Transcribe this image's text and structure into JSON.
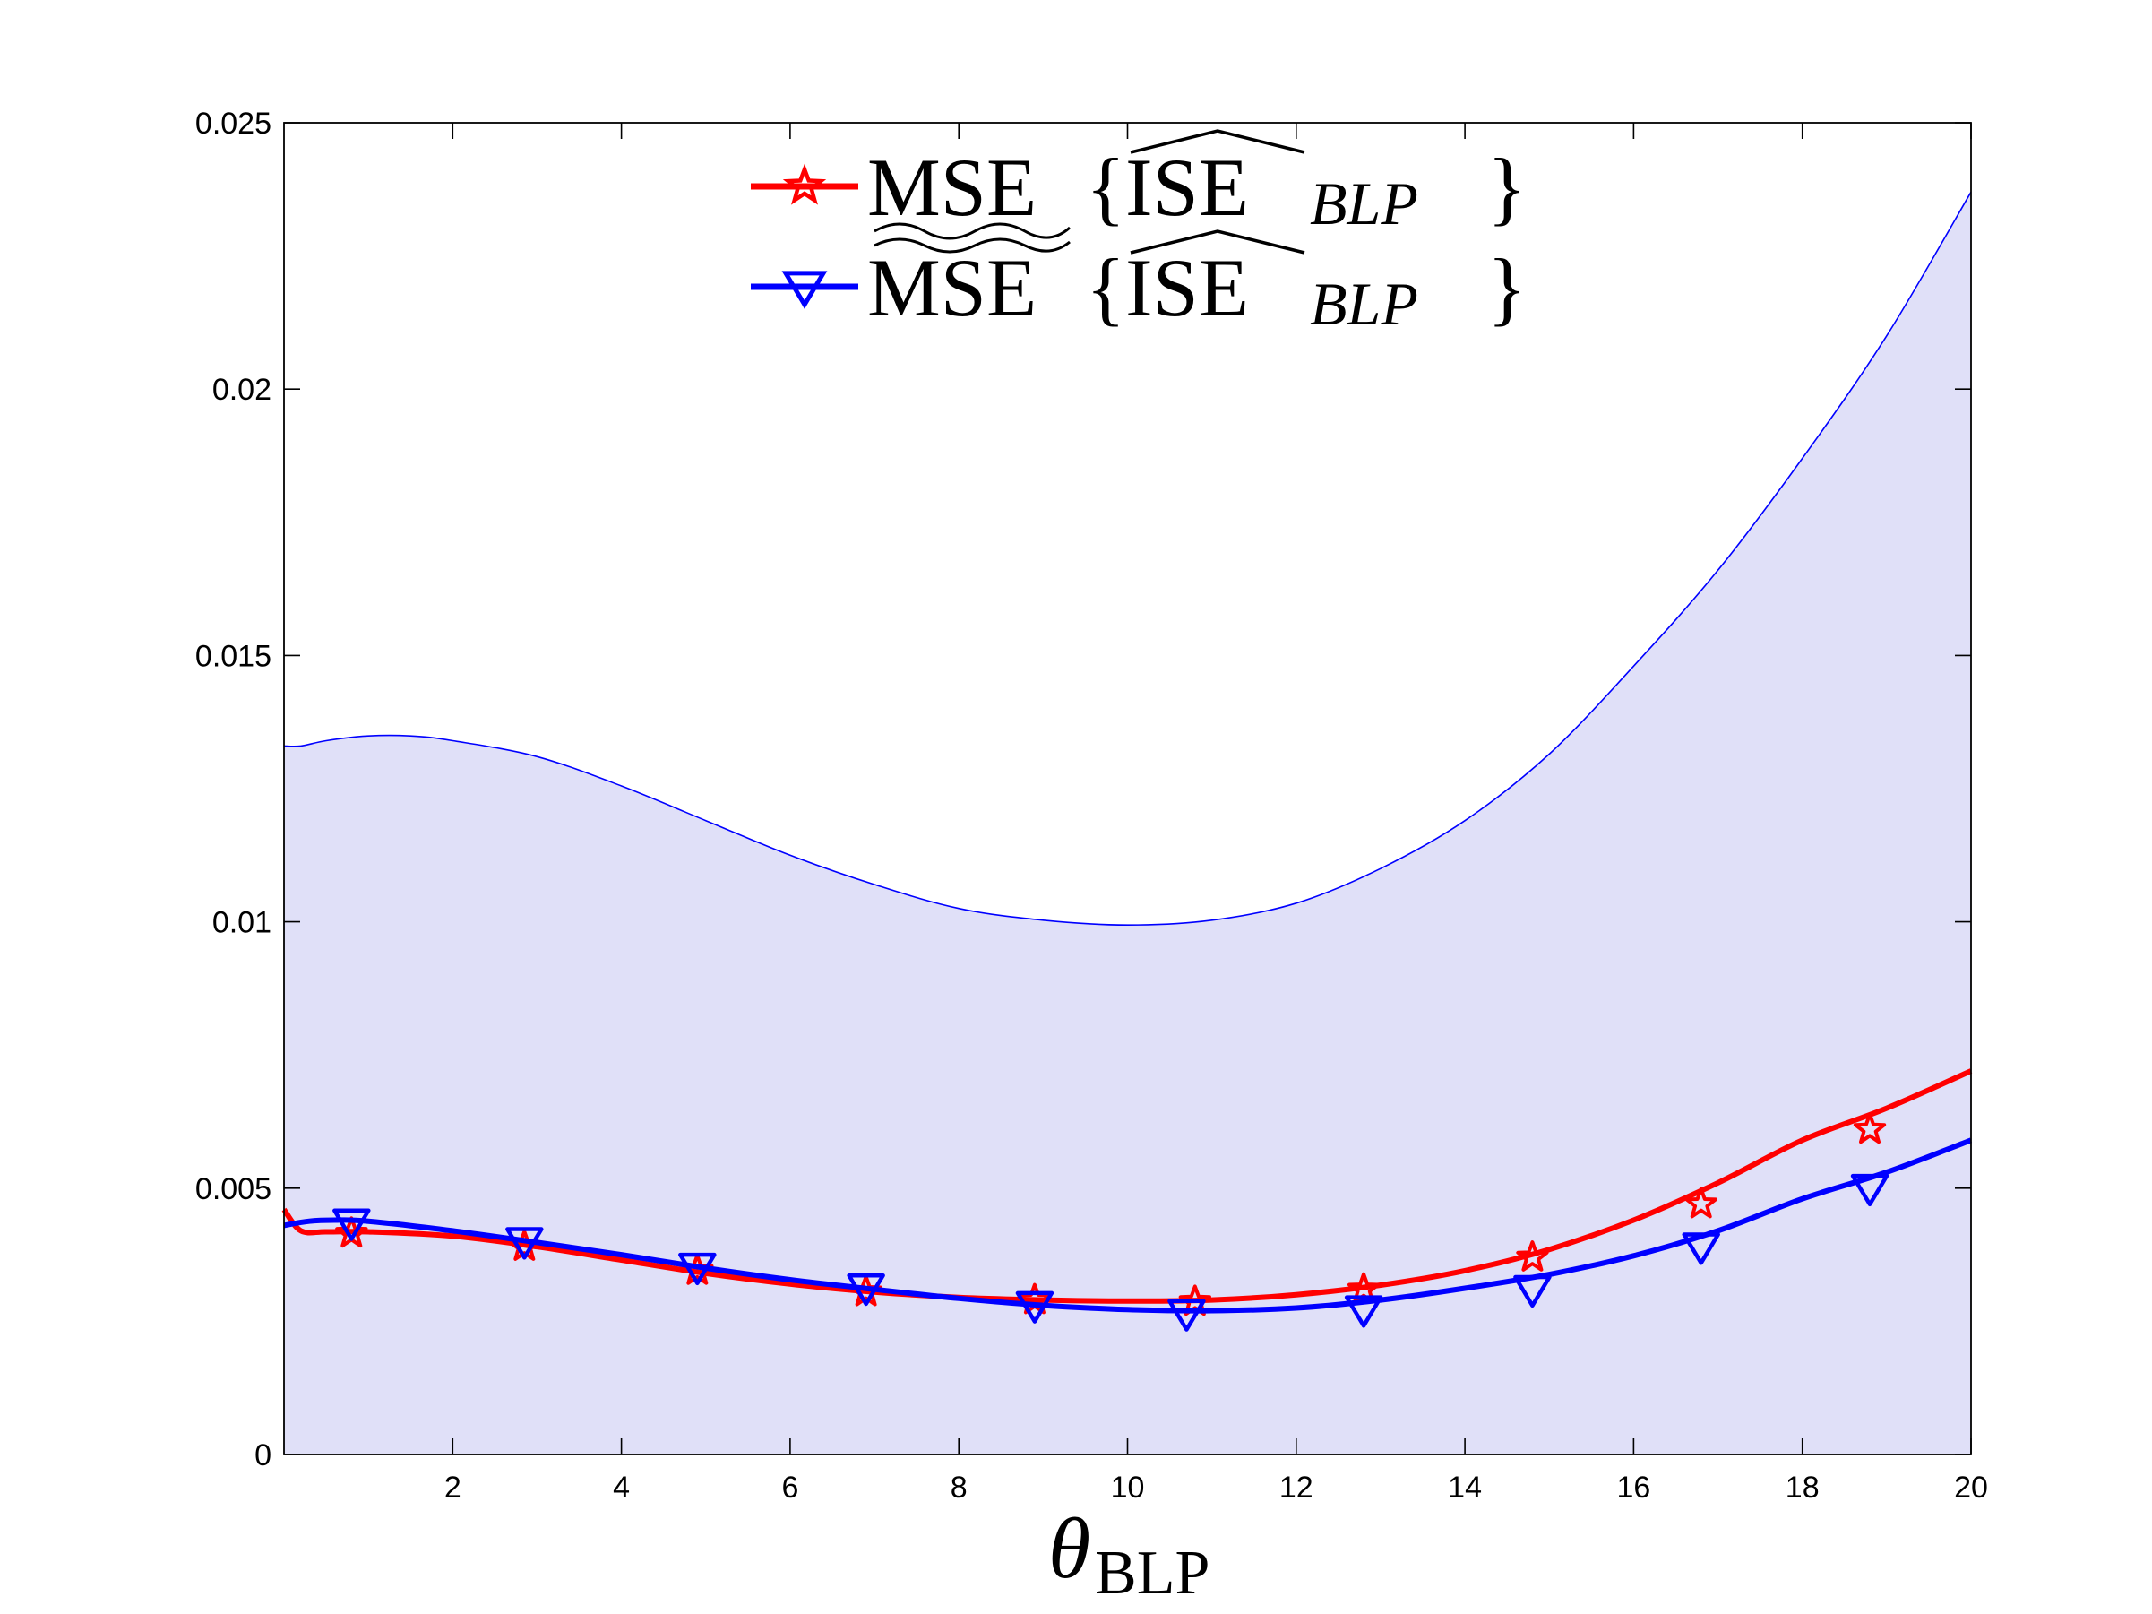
{
  "chart_data": {
    "type": "line",
    "title": "",
    "xlabel": "θ",
    "xlabel_sub": "BLP",
    "ylabel": "",
    "xlim": [
      0,
      20
    ],
    "ylim": [
      0,
      0.025
    ],
    "xticks": [
      2,
      4,
      6,
      8,
      10,
      12,
      14,
      16,
      18,
      20
    ],
    "xtick_labels": [
      "2",
      "4",
      "6",
      "8",
      "10",
      "12",
      "14",
      "16",
      "18",
      "20"
    ],
    "yticks": [
      0,
      0.005,
      0.01,
      0.015,
      0.02,
      0.025
    ],
    "ytick_labels": [
      "0",
      "0.005",
      "0.01",
      "0.015",
      "0.02",
      "0.025"
    ],
    "grid": false,
    "legend_position": "top-center",
    "band": {
      "name": "confidence band",
      "color": "#e0e0f8",
      "edge_color": "#0000ff",
      "upper": [
        [
          0.0,
          0.0133
        ],
        [
          0.2,
          0.0133
        ],
        [
          0.5,
          0.0134
        ],
        [
          1.0,
          0.01349
        ],
        [
          1.5,
          0.01349
        ],
        [
          2.0,
          0.0134
        ],
        [
          3.0,
          0.0131
        ],
        [
          4.0,
          0.01255
        ],
        [
          5.0,
          0.0119
        ],
        [
          6.0,
          0.01125
        ],
        [
          7.0,
          0.0107
        ],
        [
          8.0,
          0.01025
        ],
        [
          9.0,
          0.01003
        ],
        [
          10.0,
          0.00994
        ],
        [
          11.0,
          0.01003
        ],
        [
          12.0,
          0.01035
        ],
        [
          13.0,
          0.011
        ],
        [
          14.0,
          0.0119
        ],
        [
          15.0,
          0.01315
        ],
        [
          16.0,
          0.0148
        ],
        [
          17.0,
          0.0166
        ],
        [
          18.0,
          0.0187
        ],
        [
          19.0,
          0.021
        ],
        [
          20.0,
          0.0237
        ]
      ],
      "lower": 0
    },
    "series": [
      {
        "name": "MSE{ISE_BLP}",
        "legend_label": "MSE",
        "legend_arg": "ISE",
        "legend_sub": "BLP",
        "color": "#ff0000",
        "marker": "star",
        "x": [
          0.0,
          0.2,
          0.5,
          1.0,
          2.0,
          3.0,
          4.0,
          5.0,
          6.0,
          7.0,
          8.0,
          9.0,
          10.0,
          11.0,
          12.0,
          13.0,
          14.0,
          15.0,
          16.0,
          17.0,
          18.0,
          19.0,
          20.0
        ],
        "y": [
          0.0046,
          0.0042,
          0.00418,
          0.00418,
          0.0041,
          0.0039,
          0.00365,
          0.0034,
          0.0032,
          0.00305,
          0.00295,
          0.0029,
          0.00288,
          0.0029,
          0.003,
          0.00318,
          0.00345,
          0.00385,
          0.0044,
          0.0051,
          0.0059,
          0.0065,
          0.0072
        ],
        "marker_x": [
          0.8,
          2.85,
          4.9,
          6.9,
          8.9,
          10.8,
          12.8,
          14.8,
          16.8,
          18.8
        ],
        "marker_y": [
          0.00415,
          0.0039,
          0.00345,
          0.00305,
          0.0029,
          0.00287,
          0.0031,
          0.0037,
          0.0047,
          0.0061
        ]
      },
      {
        "name": "MSE~{ISE_BLP}",
        "legend_label": "MSE",
        "legend_arg": "ISE",
        "legend_sub": "BLP",
        "color": "#0000ff",
        "marker": "triangle-down",
        "x": [
          0.0,
          0.3,
          0.6,
          1.0,
          2.0,
          3.0,
          4.0,
          5.0,
          6.0,
          7.0,
          8.0,
          9.0,
          10.0,
          11.0,
          12.0,
          13.0,
          14.0,
          15.0,
          16.0,
          17.0,
          18.0,
          19.0,
          20.0
        ],
        "y": [
          0.0043,
          0.00438,
          0.0044,
          0.00438,
          0.0042,
          0.00398,
          0.00375,
          0.0035,
          0.00328,
          0.0031,
          0.00293,
          0.0028,
          0.00272,
          0.0027,
          0.00275,
          0.0029,
          0.00312,
          0.00338,
          0.00373,
          0.0042,
          0.0048,
          0.0053,
          0.0059
        ],
        "marker_x": [
          0.8,
          2.85,
          4.9,
          6.9,
          8.9,
          10.7,
          12.8,
          14.8,
          16.8,
          18.8
        ],
        "marker_y": [
          0.00435,
          0.004,
          0.00352,
          0.00313,
          0.0028,
          0.00265,
          0.00272,
          0.0031,
          0.0039,
          0.005
        ]
      }
    ]
  }
}
